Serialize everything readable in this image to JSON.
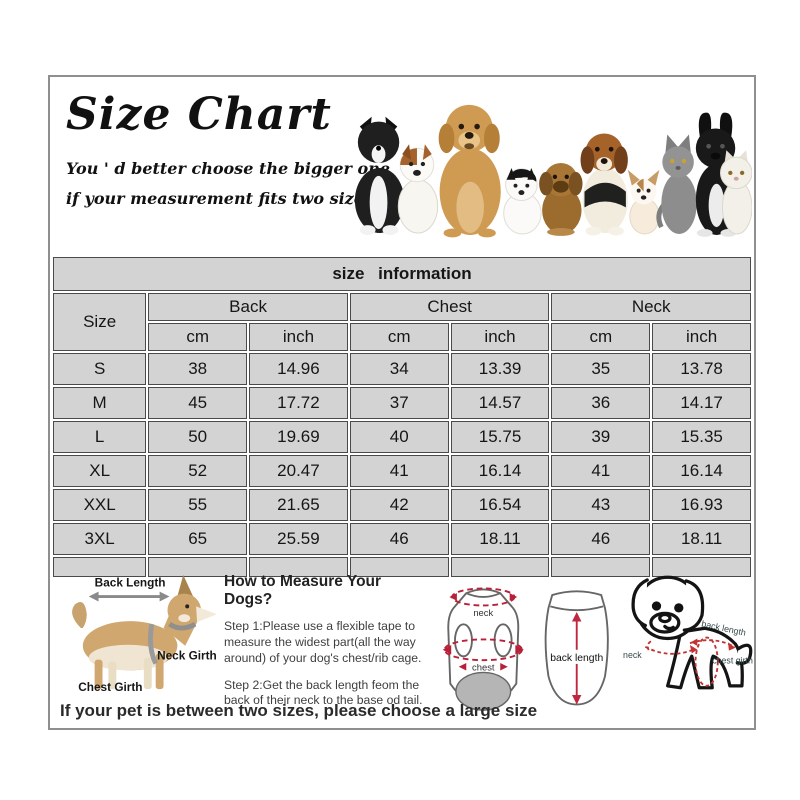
{
  "header": {
    "title": "Size Chart",
    "subtitle_line1": "You ' d better choose the bigger one",
    "subtitle_line2": "if your measurement fits two sizes ."
  },
  "size_table": {
    "caption": "size information",
    "corner_label": "Size",
    "group_headers": [
      "Back",
      "Chest",
      "Neck"
    ],
    "unit_headers": [
      "cm",
      "inch",
      "cm",
      "inch",
      "cm",
      "inch"
    ],
    "rows": [
      {
        "size": "S",
        "values": [
          "38",
          "14.96",
          "34",
          "13.39",
          "35",
          "13.78"
        ]
      },
      {
        "size": "M",
        "values": [
          "45",
          "17.72",
          "37",
          "14.57",
          "36",
          "14.17"
        ]
      },
      {
        "size": "L",
        "values": [
          "50",
          "19.69",
          "40",
          "15.75",
          "39",
          "15.35"
        ]
      },
      {
        "size": "XL",
        "values": [
          "52",
          "20.47",
          "41",
          "16.14",
          "41",
          "16.14"
        ]
      },
      {
        "size": "XXL",
        "values": [
          "55",
          "21.65",
          "42",
          "16.54",
          "43",
          "16.93"
        ]
      },
      {
        "size": "3XL",
        "values": [
          "65",
          "25.59",
          "46",
          "18.11",
          "46",
          "18.11"
        ]
      }
    ]
  },
  "measure_guide": {
    "heading": "How to Measure Your Dogs?",
    "steps": [
      "Step 1:Please use a flexible tape to measure the widest part(all the way around) of your dog's chest/rib cage.",
      "Step 2:Get the back length feom the back of their neck to the base od tail."
    ],
    "dog_diagram": {
      "back_length": "Back Length",
      "neck_girth": "Neck Girth",
      "chest_girth": "Chest Girth"
    },
    "garment_front": {
      "neck": "neck",
      "chest": "chest"
    },
    "garment_back": {
      "back_length": "back length"
    },
    "puppy_diagram": {
      "neck": "neck",
      "back_length": "back length",
      "chest_girth": "chest girth"
    }
  },
  "footer_note": "If your pet is between two sizes, please choose a large size",
  "colors": {
    "table_cell": "#d3d3d3",
    "table_border": "#4a4a4a",
    "frame_border": "#8f8f8f",
    "accent_red": "#b82039"
  }
}
